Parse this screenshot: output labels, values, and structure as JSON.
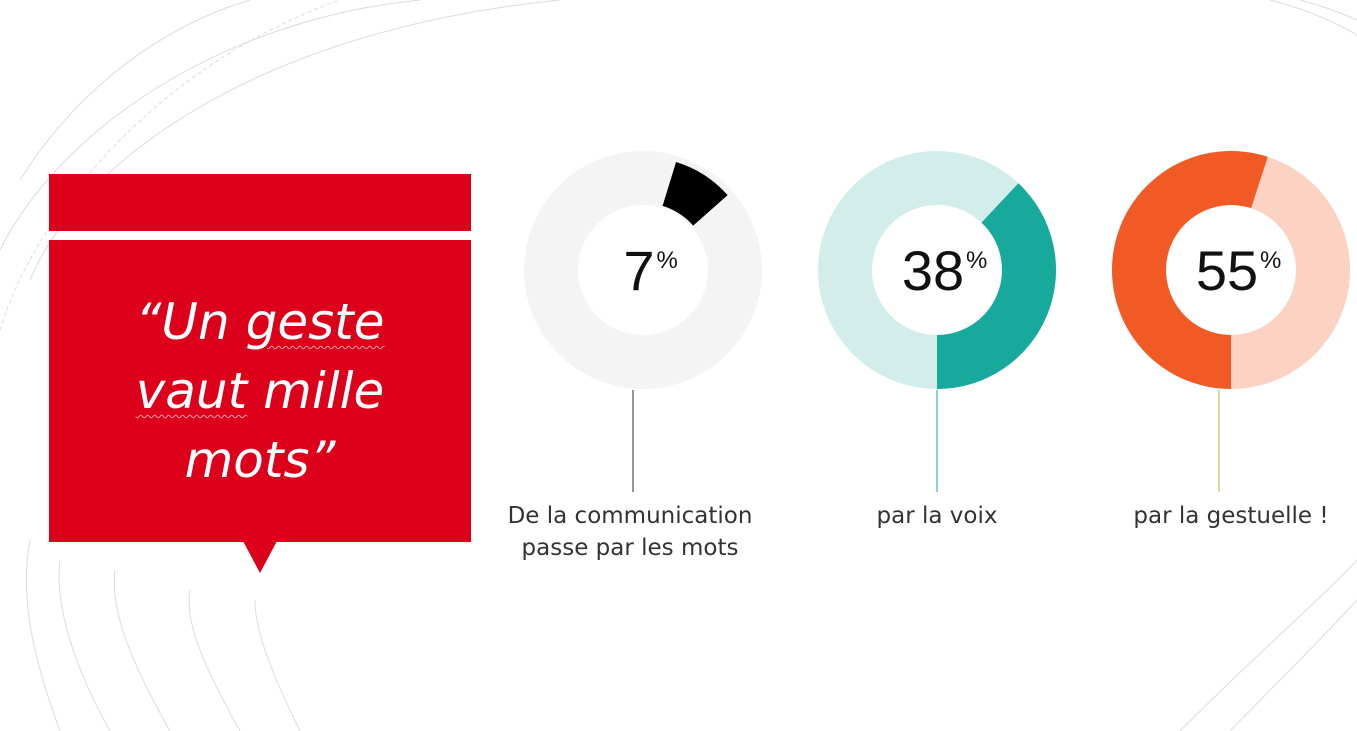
{
  "quote": {
    "line1_mark": "“Un ",
    "line1_word": "geste",
    "line2_word": "vaut",
    "line2_rest": " mille",
    "line3": "mots”"
  },
  "chart_data": {
    "type": "donut",
    "series": [
      {
        "value": 7,
        "display": "7",
        "unit": "%",
        "caption_lines": [
          "De la communication",
          "passe par les mots"
        ],
        "accent_color": "#000000",
        "track_color": "#f4f4f4",
        "stem_color": "#2b2b2b"
      },
      {
        "value": 38,
        "display": "38",
        "unit": "%",
        "caption_lines": [
          "par la voix"
        ],
        "accent_color": "#17a99b",
        "track_color": "#d3eeea",
        "stem_color": "#17a99b"
      },
      {
        "value": 55,
        "display": "55",
        "unit": "%",
        "caption_lines": [
          "par la gestuelle !"
        ],
        "accent_color": "#f15a24",
        "track_color": "#fcd2c3",
        "stem_color": "#d9a441"
      }
    ]
  }
}
